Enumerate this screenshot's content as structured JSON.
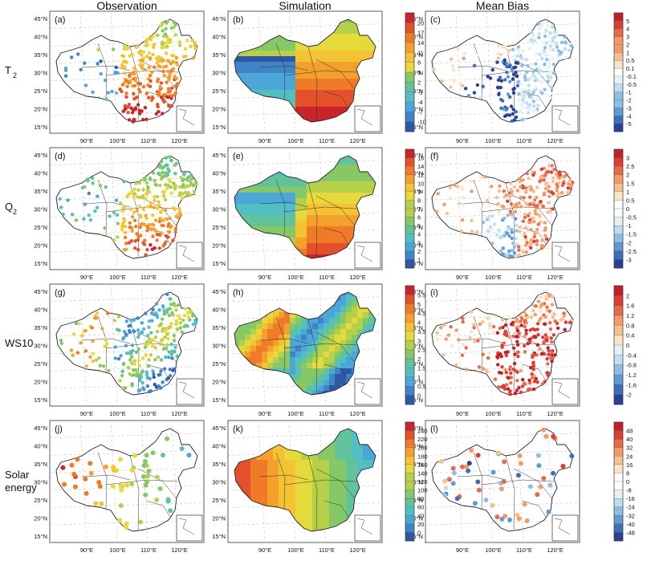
{
  "columns": [
    "Observation",
    "Simulation",
    "Mean Bias"
  ],
  "rows": [
    {
      "label_main": "T",
      "label_sub": "2",
      "panels": [
        {
          "tag": "(a)",
          "type": "obs"
        },
        {
          "tag": "(b)",
          "type": "sim"
        },
        {
          "tag": "(c)",
          "type": "bias"
        }
      ]
    },
    {
      "label_main": "Q",
      "label_sub": "2",
      "panels": [
        {
          "tag": "(d)",
          "type": "obs"
        },
        {
          "tag": "(e)",
          "type": "sim"
        },
        {
          "tag": "(f)",
          "type": "bias"
        }
      ]
    },
    {
      "label_main": "WS10",
      "label_sub": "",
      "panels": [
        {
          "tag": "(g)",
          "type": "obs"
        },
        {
          "tag": "(h)",
          "type": "sim"
        },
        {
          "tag": "(i)",
          "type": "bias"
        }
      ]
    },
    {
      "label_main": "Solar",
      "label_main2": "energy",
      "label_sub": "",
      "panels": [
        {
          "tag": "(j)",
          "type": "obs"
        },
        {
          "tag": "(k)",
          "type": "sim"
        },
        {
          "tag": "(l)",
          "type": "bias"
        }
      ]
    }
  ],
  "lat_labels": [
    "45°N",
    "40°N",
    "35°N",
    "30°N",
    "25°N",
    "20°N",
    "15°N"
  ],
  "lon_labels": [
    "90°E",
    "100°E",
    "110°E",
    "120°E"
  ],
  "colorbars": {
    "value": [
      [
        "20",
        "17",
        "14",
        "11",
        "8",
        "5",
        "2",
        "-1",
        "-4",
        "-7",
        "-10"
      ],
      [
        "16",
        "14",
        "12",
        "10",
        "9",
        "8",
        "7",
        "6",
        "5",
        "4",
        "3",
        "2",
        "1"
      ],
      [
        "5.5",
        "5",
        "4.5",
        "4",
        "3.5",
        "3",
        "2.5",
        "2",
        "1.5",
        "1",
        "0.5",
        "0"
      ],
      [
        "240",
        "220",
        "200",
        "180",
        "160",
        "140",
        "120",
        "100",
        "80",
        "60",
        "40",
        "20",
        "0"
      ]
    ],
    "bias": [
      [
        "5",
        "4",
        "3",
        "2",
        "1",
        "0.5",
        "0.1",
        "-0.1",
        "-0.5",
        "-1",
        "-2",
        "-3",
        "-4",
        "-5"
      ],
      [
        "3",
        "2.5",
        "2",
        "1.5",
        "1",
        "0.5",
        "0",
        "-0.5",
        "-1",
        "-1.5",
        "-2",
        "-2.5",
        "-3"
      ],
      [
        "2",
        "1.6",
        "1.2",
        "0.8",
        "0.4",
        "0",
        "-0.4",
        "-0.8",
        "-1.2",
        "-1.6",
        "-2"
      ],
      [
        "48",
        "40",
        "32",
        "24",
        "16",
        "8",
        "0",
        "-8",
        "-16",
        "-24",
        "-32",
        "-40",
        "-48"
      ]
    ]
  },
  "colors": {
    "value_scale": [
      "#2f57a8",
      "#3f85c6",
      "#4aa7d8",
      "#52bfc3",
      "#62c39a",
      "#86c866",
      "#b6d04a",
      "#e6d93c",
      "#f5c233",
      "#f4a02c",
      "#ef7a27",
      "#e3502a",
      "#c8242a"
    ],
    "bias_scale": [
      "#2b3f99",
      "#3d6fb8",
      "#5e9bd0",
      "#8ebfe3",
      "#bfdff0",
      "#e6f1f7",
      "#ffffff",
      "#fbe3c8",
      "#f7c08f",
      "#f29a68",
      "#e86a4a",
      "#d93f36",
      "#c21f2a"
    ],
    "border": "#222222"
  }
}
